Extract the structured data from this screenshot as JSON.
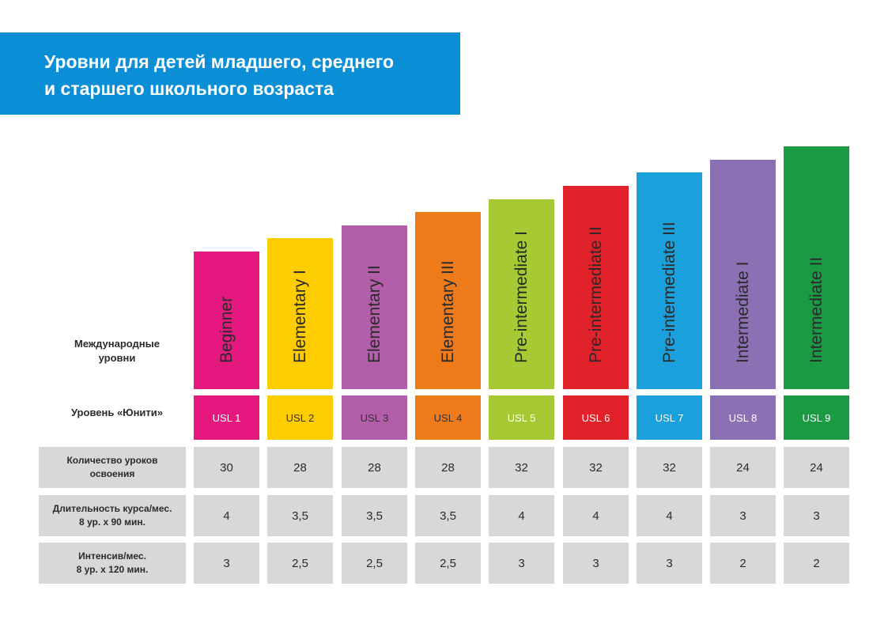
{
  "title": {
    "line1": "Уровни для детей младшего, среднего",
    "line2": "и старшего школьного возраста"
  },
  "labels": {
    "international_line1": "Международные",
    "international_line2": "уровни",
    "unity": "Уровень «Юнити»"
  },
  "rows": [
    {
      "line1": "Количество уроков",
      "line2": "освоения"
    },
    {
      "line1": "Длительность курса/мес.",
      "line2": "8 ур. х 90 мин."
    },
    {
      "line1": "Интенсив/мес.",
      "line2": "8 ур. х 120 мин."
    }
  ],
  "chart_data": {
    "type": "bar",
    "categories": [
      "Beginner",
      "Elementary I",
      "Elementary II",
      "Elementary III",
      "Pre-intermediate I",
      "Pre-intermediate II",
      "Pre-intermediate III",
      "Intermediate I",
      "Intermediate II"
    ],
    "usl": [
      "USL 1",
      "USL 2",
      "USL 3",
      "USL 4",
      "USL 5",
      "USL 6",
      "USL 7",
      "USL 8",
      "USL 9"
    ],
    "colors": [
      "#e5187f",
      "#fecd00",
      "#b25ea8",
      "#ee7a1a",
      "#a6ca34",
      "#e2222b",
      "#1aa0dc",
      "#8b71b3",
      "#1b9a44"
    ],
    "uslBg": [
      "#e5187f",
      "#fecd00",
      "#b25ea8",
      "#ee7a1a",
      "#a6ca34",
      "#e2222b",
      "#1aa0dc",
      "#8b71b3",
      "#1b9a44"
    ],
    "uslText": [
      "#ffffff",
      "#333333",
      "#333333",
      "#333333",
      "#ffffff",
      "#ffffff",
      "#ffffff",
      "#ffffff",
      "#ffffff"
    ],
    "values": [
      1,
      2,
      3,
      4,
      5,
      6,
      7,
      8,
      9
    ],
    "lessons": [
      "30",
      "28",
      "28",
      "28",
      "32",
      "32",
      "32",
      "24",
      "24"
    ],
    "duration": [
      "4",
      "3,5",
      "3,5",
      "3,5",
      "4",
      "4",
      "4",
      "3",
      "3"
    ],
    "intensive": [
      "3",
      "2,5",
      "2,5",
      "2,5",
      "3",
      "3",
      "3",
      "2",
      "2"
    ]
  }
}
